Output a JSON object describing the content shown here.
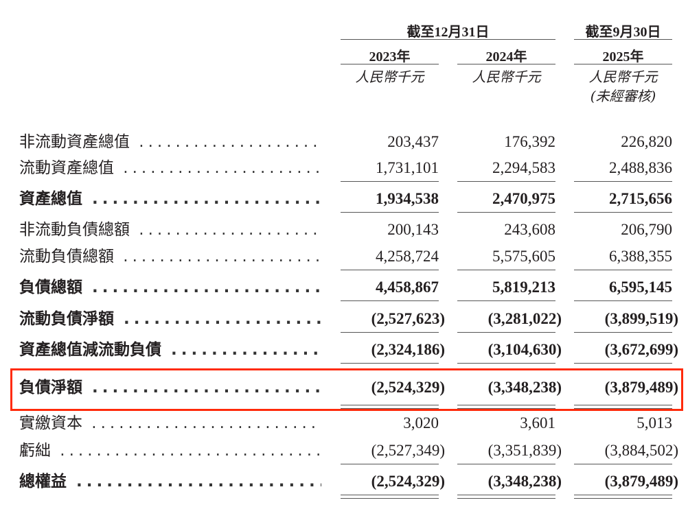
{
  "header": {
    "group1": "截至12月31日",
    "group2": "截至9月30日",
    "years": [
      "2023年",
      "2024年",
      "2025年"
    ],
    "unit": "人民幣千元",
    "unaudited": "(未經審核)"
  },
  "rows": [
    {
      "label": "非流動資產總值",
      "values": [
        "203,437",
        "176,392",
        "226,820"
      ],
      "bold": false
    },
    {
      "label": "流動資產總值",
      "values": [
        "1,731,101",
        "2,294,583",
        "2,488,836"
      ],
      "bold": false
    },
    {
      "label": "資產總值",
      "values": [
        "1,934,538",
        "2,470,975",
        "2,715,656"
      ],
      "bold": true
    },
    {
      "label": "非流動負債總額",
      "values": [
        "200,143",
        "243,608",
        "206,790"
      ],
      "bold": false
    },
    {
      "label": "流動負債總額",
      "values": [
        "4,258,724",
        "5,575,605",
        "6,388,355"
      ],
      "bold": false
    },
    {
      "label": "負債總額",
      "values": [
        "4,458,867",
        "5,819,213",
        "6,595,145"
      ],
      "bold": true
    },
    {
      "label": "流動負債淨額",
      "values": [
        "(2,527,623)",
        "(3,281,022)",
        "(3,899,519)"
      ],
      "bold": true
    },
    {
      "label": "資產總值減流動負債",
      "values": [
        "(2,324,186)",
        "(3,104,630)",
        "(3,672,699)"
      ],
      "bold": true
    },
    {
      "label": "負債淨額",
      "values": [
        "(2,524,329)",
        "(3,348,238)",
        "(3,879,489)"
      ],
      "bold": true,
      "highlighted": true
    },
    {
      "label": "實繳資本",
      "values": [
        "3,020",
        "3,601",
        "5,013"
      ],
      "bold": false
    },
    {
      "label": "虧絀",
      "values": [
        "(2,527,349)",
        "(3,351,839)",
        "(3,884,502)"
      ],
      "bold": false
    },
    {
      "label": "總權益",
      "values": [
        "(2,524,329)",
        "(3,348,238)",
        "(3,879,489)"
      ],
      "bold": true
    }
  ],
  "highlight_color": "#ff2a0a"
}
